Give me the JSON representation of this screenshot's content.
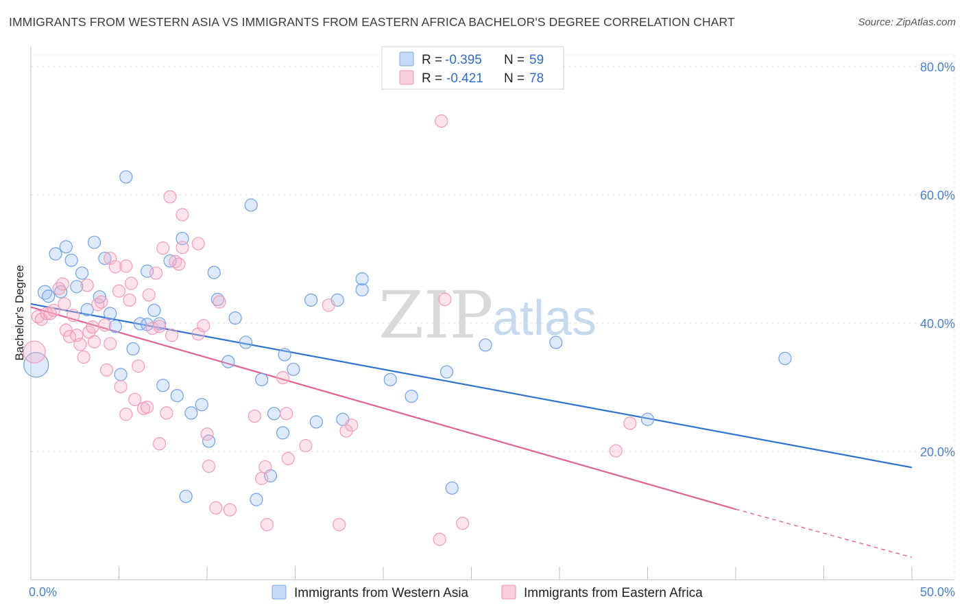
{
  "title": "IMMIGRANTS FROM WESTERN ASIA VS IMMIGRANTS FROM EASTERN AFRICA BACHELOR'S DEGREE CORRELATION CHART",
  "source": "Source: ZipAtlas.com",
  "watermark": {
    "zip": "ZIP",
    "atlas": "atlas"
  },
  "legend": {
    "r_label": "R =",
    "n_label": "N =",
    "entries": [
      {
        "r": "-0.395",
        "n": "59"
      },
      {
        "r": "-0.421",
        "n": "78"
      }
    ]
  },
  "chart_data": {
    "type": "scatter",
    "title": "IMMIGRANTS FROM WESTERN ASIA VS IMMIGRANTS FROM EASTERN AFRICA BACHELOR'S DEGREE CORRELATION CHART",
    "xlabel": "",
    "ylabel": "Bachelor's Degree",
    "xlim": [
      0,
      50
    ],
    "ylim": [
      0,
      80
    ],
    "x_tick_labels": [
      "0.0%",
      "50.0%"
    ],
    "y_ticks": [
      20,
      40,
      60,
      80
    ],
    "y_tick_labels": [
      "20.0%",
      "40.0%",
      "60.0%",
      "80.0%"
    ],
    "grid": true,
    "legend_position": "top-center",
    "series": [
      {
        "name": "Immigrants from Western Asia",
        "color": "#6fa0e6",
        "line_color": "#2f73d0",
        "r": -0.395,
        "n": 59,
        "trend": {
          "x0": 0,
          "y0": 43.0,
          "x1": 50,
          "y1": 17.5
        },
        "points": [
          [
            0.3,
            33.5,
            18
          ],
          [
            0.8,
            44.8,
            10
          ],
          [
            1.0,
            44.2,
            9
          ],
          [
            1.4,
            50.8,
            9
          ],
          [
            1.7,
            44.9,
            9
          ],
          [
            2.0,
            51.9,
            9
          ],
          [
            2.3,
            49.8,
            9
          ],
          [
            2.6,
            45.7,
            9
          ],
          [
            2.9,
            47.8,
            9
          ],
          [
            3.2,
            42.1,
            9
          ],
          [
            3.6,
            52.6,
            9
          ],
          [
            3.9,
            44.1,
            9
          ],
          [
            4.2,
            50.1,
            9
          ],
          [
            4.5,
            41.5,
            9
          ],
          [
            4.8,
            39.5,
            9
          ],
          [
            5.1,
            32.0,
            9
          ],
          [
            5.4,
            62.8,
            9
          ],
          [
            5.8,
            36.0,
            9
          ],
          [
            6.2,
            39.9,
            9
          ],
          [
            6.6,
            39.8,
            9
          ],
          [
            6.6,
            48.1,
            9
          ],
          [
            7.0,
            42.0,
            9
          ],
          [
            7.3,
            39.9,
            9
          ],
          [
            7.5,
            30.3,
            9
          ],
          [
            7.9,
            49.7,
            9
          ],
          [
            8.3,
            28.7,
            9
          ],
          [
            8.6,
            53.2,
            9
          ],
          [
            8.8,
            13.0,
            9
          ],
          [
            9.1,
            26.0,
            9
          ],
          [
            9.7,
            27.3,
            9
          ],
          [
            10.1,
            21.6,
            9
          ],
          [
            10.4,
            47.9,
            9
          ],
          [
            10.6,
            43.7,
            9
          ],
          [
            11.2,
            34.0,
            9
          ],
          [
            11.6,
            40.8,
            9
          ],
          [
            12.2,
            37.0,
            9
          ],
          [
            12.5,
            58.4,
            9
          ],
          [
            12.8,
            12.5,
            9
          ],
          [
            13.1,
            31.2,
            9
          ],
          [
            13.6,
            16.2,
            9
          ],
          [
            13.8,
            25.9,
            9
          ],
          [
            14.3,
            22.9,
            9
          ],
          [
            14.4,
            35.1,
            9
          ],
          [
            14.9,
            32.8,
            9
          ],
          [
            15.9,
            43.6,
            9
          ],
          [
            16.2,
            24.6,
            9
          ],
          [
            17.4,
            43.6,
            9
          ],
          [
            17.7,
            25.0,
            9
          ],
          [
            18.8,
            45.2,
            9
          ],
          [
            18.8,
            46.9,
            9
          ],
          [
            20.4,
            31.2,
            9
          ],
          [
            21.6,
            28.6,
            9
          ],
          [
            23.6,
            32.4,
            9
          ],
          [
            23.9,
            14.3,
            9
          ],
          [
            25.8,
            36.6,
            9
          ],
          [
            29.8,
            37.0,
            9
          ],
          [
            35.0,
            25.0,
            9
          ],
          [
            42.8,
            34.5,
            9
          ]
        ]
      },
      {
        "name": "Immigrants from Eastern Africa",
        "color": "#f29bb7",
        "line_color": "#e0638f",
        "r": -0.421,
        "n": 78,
        "trend": {
          "x0": 0,
          "y0": 42.5,
          "x1": 40,
          "y1": 11.0,
          "dash_x1": 50,
          "dash_y1": 3.5
        },
        "points": [
          [
            0.2,
            35.5,
            16
          ],
          [
            0.4,
            41.0,
            9
          ],
          [
            0.6,
            40.6,
            9
          ],
          [
            0.9,
            41.5,
            9
          ],
          [
            1.1,
            41.5,
            9
          ],
          [
            1.3,
            42.0,
            9
          ],
          [
            1.6,
            45.4,
            9
          ],
          [
            1.8,
            46.1,
            9
          ],
          [
            1.9,
            43.0,
            9
          ],
          [
            2.0,
            38.9,
            9
          ],
          [
            2.2,
            37.9,
            9
          ],
          [
            2.4,
            41.2,
            9
          ],
          [
            2.6,
            38.1,
            9
          ],
          [
            2.8,
            36.7,
            9
          ],
          [
            3.0,
            34.7,
            9
          ],
          [
            3.2,
            45.9,
            9
          ],
          [
            3.3,
            38.6,
            9
          ],
          [
            3.5,
            39.4,
            9
          ],
          [
            3.6,
            37.1,
            9
          ],
          [
            3.8,
            42.9,
            9
          ],
          [
            4.0,
            43.3,
            9
          ],
          [
            4.2,
            39.7,
            9
          ],
          [
            4.3,
            32.7,
            9
          ],
          [
            4.5,
            36.8,
            9
          ],
          [
            4.5,
            50.1,
            9
          ],
          [
            4.8,
            48.8,
            9
          ],
          [
            5.0,
            45.0,
            9
          ],
          [
            5.1,
            30.1,
            9
          ],
          [
            5.4,
            25.8,
            9
          ],
          [
            5.4,
            48.9,
            9
          ],
          [
            5.6,
            43.6,
            9
          ],
          [
            5.7,
            46.2,
            9
          ],
          [
            5.9,
            28.1,
            9
          ],
          [
            6.1,
            33.3,
            9
          ],
          [
            6.4,
            26.7,
            9
          ],
          [
            6.6,
            26.9,
            9
          ],
          [
            6.7,
            44.4,
            9
          ],
          [
            6.9,
            39.2,
            9
          ],
          [
            7.1,
            47.8,
            9
          ],
          [
            7.3,
            39.5,
            9
          ],
          [
            7.3,
            21.2,
            9
          ],
          [
            7.5,
            51.7,
            9
          ],
          [
            7.7,
            26.0,
            9
          ],
          [
            7.9,
            59.7,
            9
          ],
          [
            8.0,
            38.1,
            9
          ],
          [
            8.2,
            49.6,
            9
          ],
          [
            8.4,
            49.2,
            9
          ],
          [
            8.6,
            56.9,
            9
          ],
          [
            8.6,
            51.8,
            9
          ],
          [
            9.5,
            38.3,
            9
          ],
          [
            9.5,
            52.4,
            9
          ],
          [
            9.8,
            39.6,
            9
          ],
          [
            10.0,
            22.7,
            9
          ],
          [
            10.1,
            17.7,
            9
          ],
          [
            10.5,
            11.2,
            9
          ],
          [
            10.7,
            43.3,
            9
          ],
          [
            11.3,
            10.9,
            9
          ],
          [
            12.7,
            25.5,
            9
          ],
          [
            13.1,
            15.8,
            9
          ],
          [
            13.3,
            17.6,
            9
          ],
          [
            13.4,
            8.6,
            9
          ],
          [
            14.3,
            31.5,
            9
          ],
          [
            14.5,
            25.9,
            9
          ],
          [
            14.6,
            18.9,
            9
          ],
          [
            15.6,
            20.9,
            9
          ],
          [
            16.9,
            42.8,
            9
          ],
          [
            17.5,
            8.6,
            9
          ],
          [
            17.9,
            23.2,
            9
          ],
          [
            18.2,
            24.1,
            9
          ],
          [
            23.2,
            6.3,
            9
          ],
          [
            23.3,
            71.5,
            9
          ],
          [
            23.5,
            43.7,
            9
          ],
          [
            24.5,
            8.8,
            9
          ],
          [
            33.2,
            20.1,
            9
          ],
          [
            34.0,
            24.4,
            9
          ]
        ]
      }
    ]
  },
  "bottom_legend": [
    {
      "label": "Immigrants from Western Asia"
    },
    {
      "label": "Immigrants from Eastern Africa"
    }
  ]
}
